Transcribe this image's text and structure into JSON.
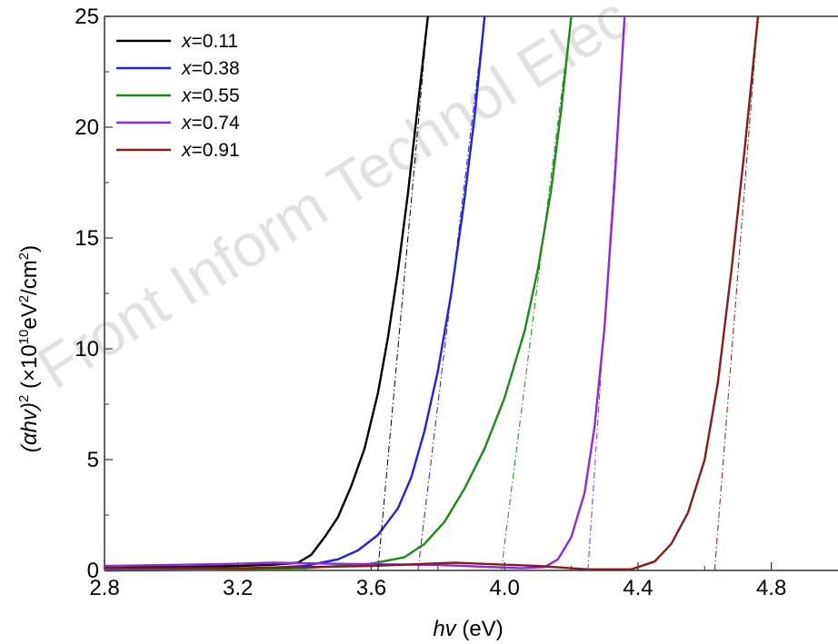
{
  "watermark": "Front Inform Technol Elec",
  "chart_data": {
    "type": "line",
    "xlabel_prefix": "hv",
    "xlabel_suffix": " (eV)",
    "ylabel_prefix": "(αhv)",
    "ylabel_sup1": "2",
    "ylabel_mid": " (×10",
    "ylabel_sup2": "10",
    "ylabel_mid2": "eV",
    "ylabel_sup3": "2",
    "ylabel_mid3": "/cm",
    "ylabel_sup4": "2",
    "ylabel_end": ")",
    "xlim": [
      2.8,
      5.0
    ],
    "ylim": [
      0,
      25
    ],
    "xticks": [
      2.8,
      3.2,
      3.6,
      4.0,
      4.4,
      4.8
    ],
    "xtick_labels": [
      "2.8",
      "3.2",
      "3.6",
      "4.0",
      "4.4",
      "4.8"
    ],
    "yticks": [
      0,
      5,
      10,
      15,
      20,
      25
    ],
    "ytick_labels": [
      "0",
      "5",
      "10",
      "15",
      "20",
      "25"
    ],
    "legend_position": "top-left",
    "legend_prefix": "x",
    "series": [
      {
        "name": "=0.11",
        "color": "#000000",
        "x": [
          2.8,
          3.0,
          3.2,
          3.3,
          3.38,
          3.42,
          3.46,
          3.5,
          3.54,
          3.58,
          3.62,
          3.65,
          3.68,
          3.71,
          3.74,
          3.77
        ],
        "y": [
          0.15,
          0.15,
          0.2,
          0.25,
          0.35,
          0.7,
          1.5,
          2.4,
          3.8,
          5.5,
          8.0,
          10.5,
          13.5,
          17.0,
          21.0,
          25.0
        ],
        "tangent": {
          "x": [
            3.62,
            3.77
          ],
          "y": [
            0,
            25
          ]
        }
      },
      {
        "name": "=0.38",
        "color": "#2020e0",
        "x": [
          2.8,
          3.0,
          3.2,
          3.4,
          3.5,
          3.56,
          3.62,
          3.68,
          3.72,
          3.76,
          3.8,
          3.84,
          3.88,
          3.91,
          3.94
        ],
        "y": [
          0.0,
          0.02,
          0.05,
          0.2,
          0.5,
          0.9,
          1.6,
          2.8,
          4.2,
          6.3,
          9.0,
          12.5,
          16.8,
          20.5,
          25.0
        ],
        "tangent": {
          "x": [
            3.74,
            3.94
          ],
          "y": [
            0,
            25
          ]
        }
      },
      {
        "name": "=0.55",
        "color": "#1a8a1a",
        "x": [
          2.8,
          3.1,
          3.4,
          3.6,
          3.7,
          3.76,
          3.82,
          3.88,
          3.94,
          4.0,
          4.06,
          4.1,
          4.14,
          4.17,
          4.2
        ],
        "y": [
          0.05,
          0.05,
          0.1,
          0.3,
          0.6,
          1.2,
          2.2,
          3.7,
          5.5,
          7.8,
          10.8,
          13.6,
          17.2,
          20.8,
          25.0
        ],
        "tangent": {
          "x": [
            3.99,
            4.2
          ],
          "y": [
            0,
            25
          ]
        }
      },
      {
        "name": "=0.74",
        "color": "#8a2be2",
        "x": [
          2.8,
          3.0,
          3.2,
          3.3,
          3.5,
          3.8,
          4.05,
          4.12,
          4.16,
          4.2,
          4.24,
          4.27,
          4.3,
          4.33,
          4.36
        ],
        "y": [
          0.2,
          0.25,
          0.3,
          0.35,
          0.3,
          0.25,
          0.1,
          0.15,
          0.5,
          1.5,
          3.5,
          6.5,
          11.0,
          17.5,
          25.0
        ],
        "tangent": {
          "x": [
            4.25,
            4.36
          ],
          "y": [
            0,
            25
          ]
        }
      },
      {
        "name": "=0.91",
        "color": "#8b1a1a",
        "x": [
          2.8,
          3.2,
          3.6,
          3.85,
          4.1,
          4.25,
          4.38,
          4.45,
          4.5,
          4.55,
          4.6,
          4.64,
          4.68,
          4.72,
          4.76
        ],
        "y": [
          0.1,
          0.1,
          0.2,
          0.35,
          0.2,
          0.05,
          0.05,
          0.4,
          1.2,
          2.6,
          5.0,
          8.5,
          13.5,
          19.0,
          25.0
        ],
        "tangent": {
          "x": [
            4.63,
            4.76
          ],
          "y": [
            0,
            25
          ]
        }
      }
    ]
  }
}
